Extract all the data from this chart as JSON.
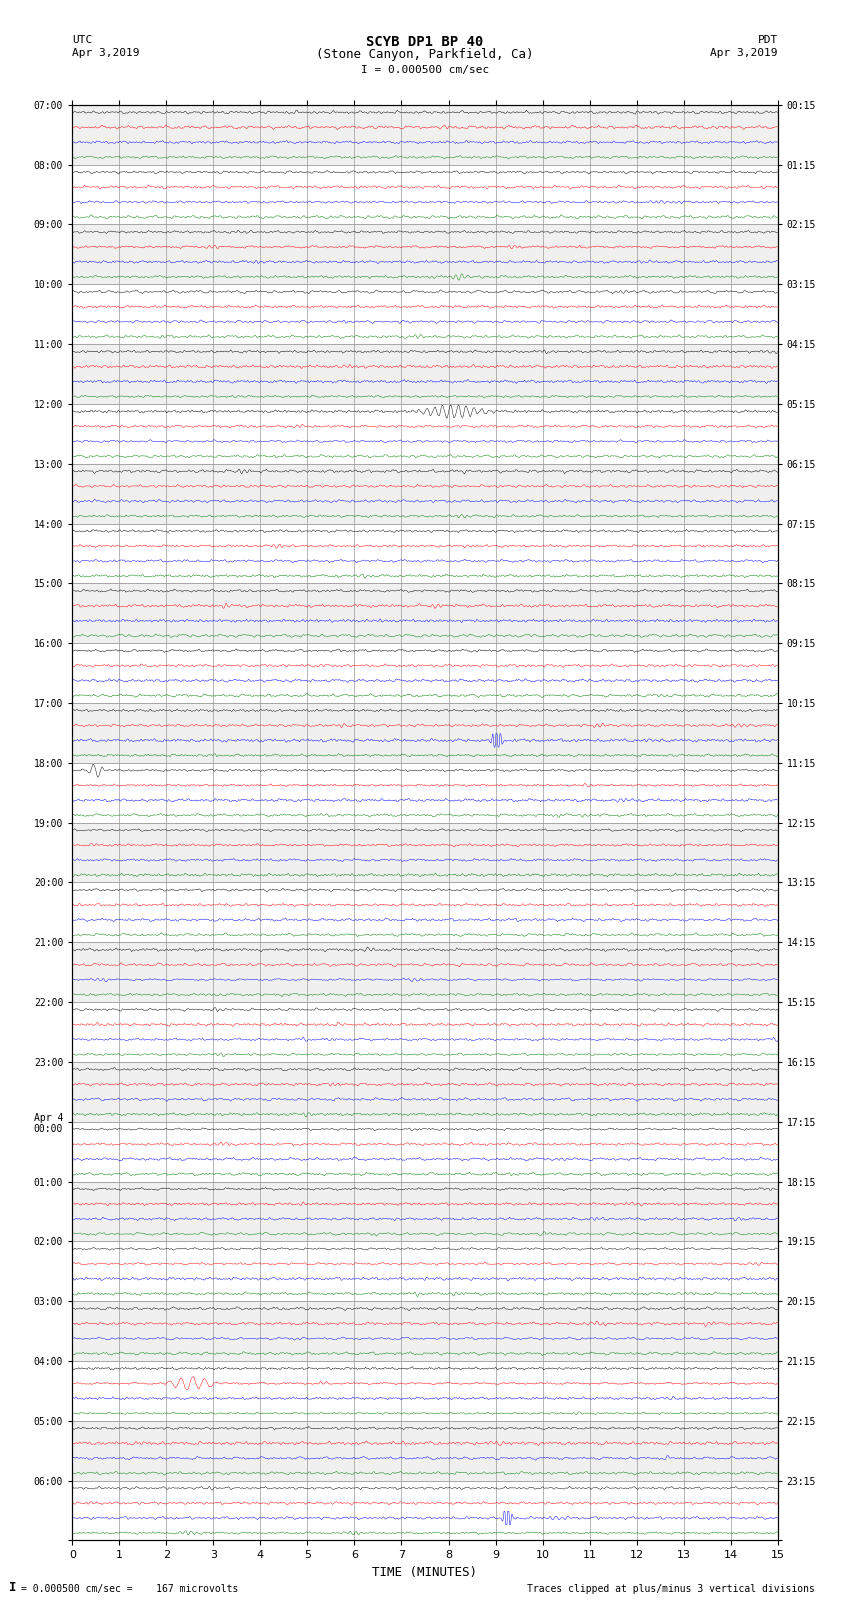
{
  "title_line1": "SCYB DP1 BP 40",
  "title_line2": "(Stone Canyon, Parkfield, Ca)",
  "scale_label": "I = 0.000500 cm/sec",
  "left_label": "UTC",
  "left_date": "Apr 3,2019",
  "right_label": "PDT",
  "right_date": "Apr 3,2019",
  "xlabel": "TIME (MINUTES)",
  "footer_left": "= 0.000500 cm/sec =    167 microvolts",
  "footer_right": "Traces clipped at plus/minus 3 vertical divisions",
  "footer_scale_marker": "I",
  "xlim": [
    0,
    15
  ],
  "xticks": [
    0,
    1,
    2,
    3,
    4,
    5,
    6,
    7,
    8,
    9,
    10,
    11,
    12,
    13,
    14,
    15
  ],
  "left_times": [
    "07:00",
    "08:00",
    "09:00",
    "10:00",
    "11:00",
    "12:00",
    "13:00",
    "14:00",
    "15:00",
    "16:00",
    "17:00",
    "18:00",
    "19:00",
    "20:00",
    "21:00",
    "22:00",
    "23:00",
    "Apr 4\n00:00",
    "01:00",
    "02:00",
    "03:00",
    "04:00",
    "05:00",
    "06:00"
  ],
  "right_times": [
    "00:15",
    "01:15",
    "02:15",
    "03:15",
    "04:15",
    "05:15",
    "06:15",
    "07:15",
    "08:15",
    "09:15",
    "10:15",
    "11:15",
    "12:15",
    "13:15",
    "14:15",
    "15:15",
    "16:15",
    "17:15",
    "18:15",
    "19:15",
    "20:15",
    "21:15",
    "22:15",
    "23:15"
  ],
  "num_rows": 24,
  "traces_per_row": 4,
  "trace_colors": [
    "black",
    "red",
    "blue",
    "green"
  ],
  "bg_color": "#ffffff",
  "grid_color": "#999999",
  "row_bg_colors": [
    "#f0f0f0",
    "#ffffff"
  ],
  "fig_width": 8.5,
  "fig_height": 16.13,
  "noise_amplitude": 0.03,
  "dpi": 100
}
